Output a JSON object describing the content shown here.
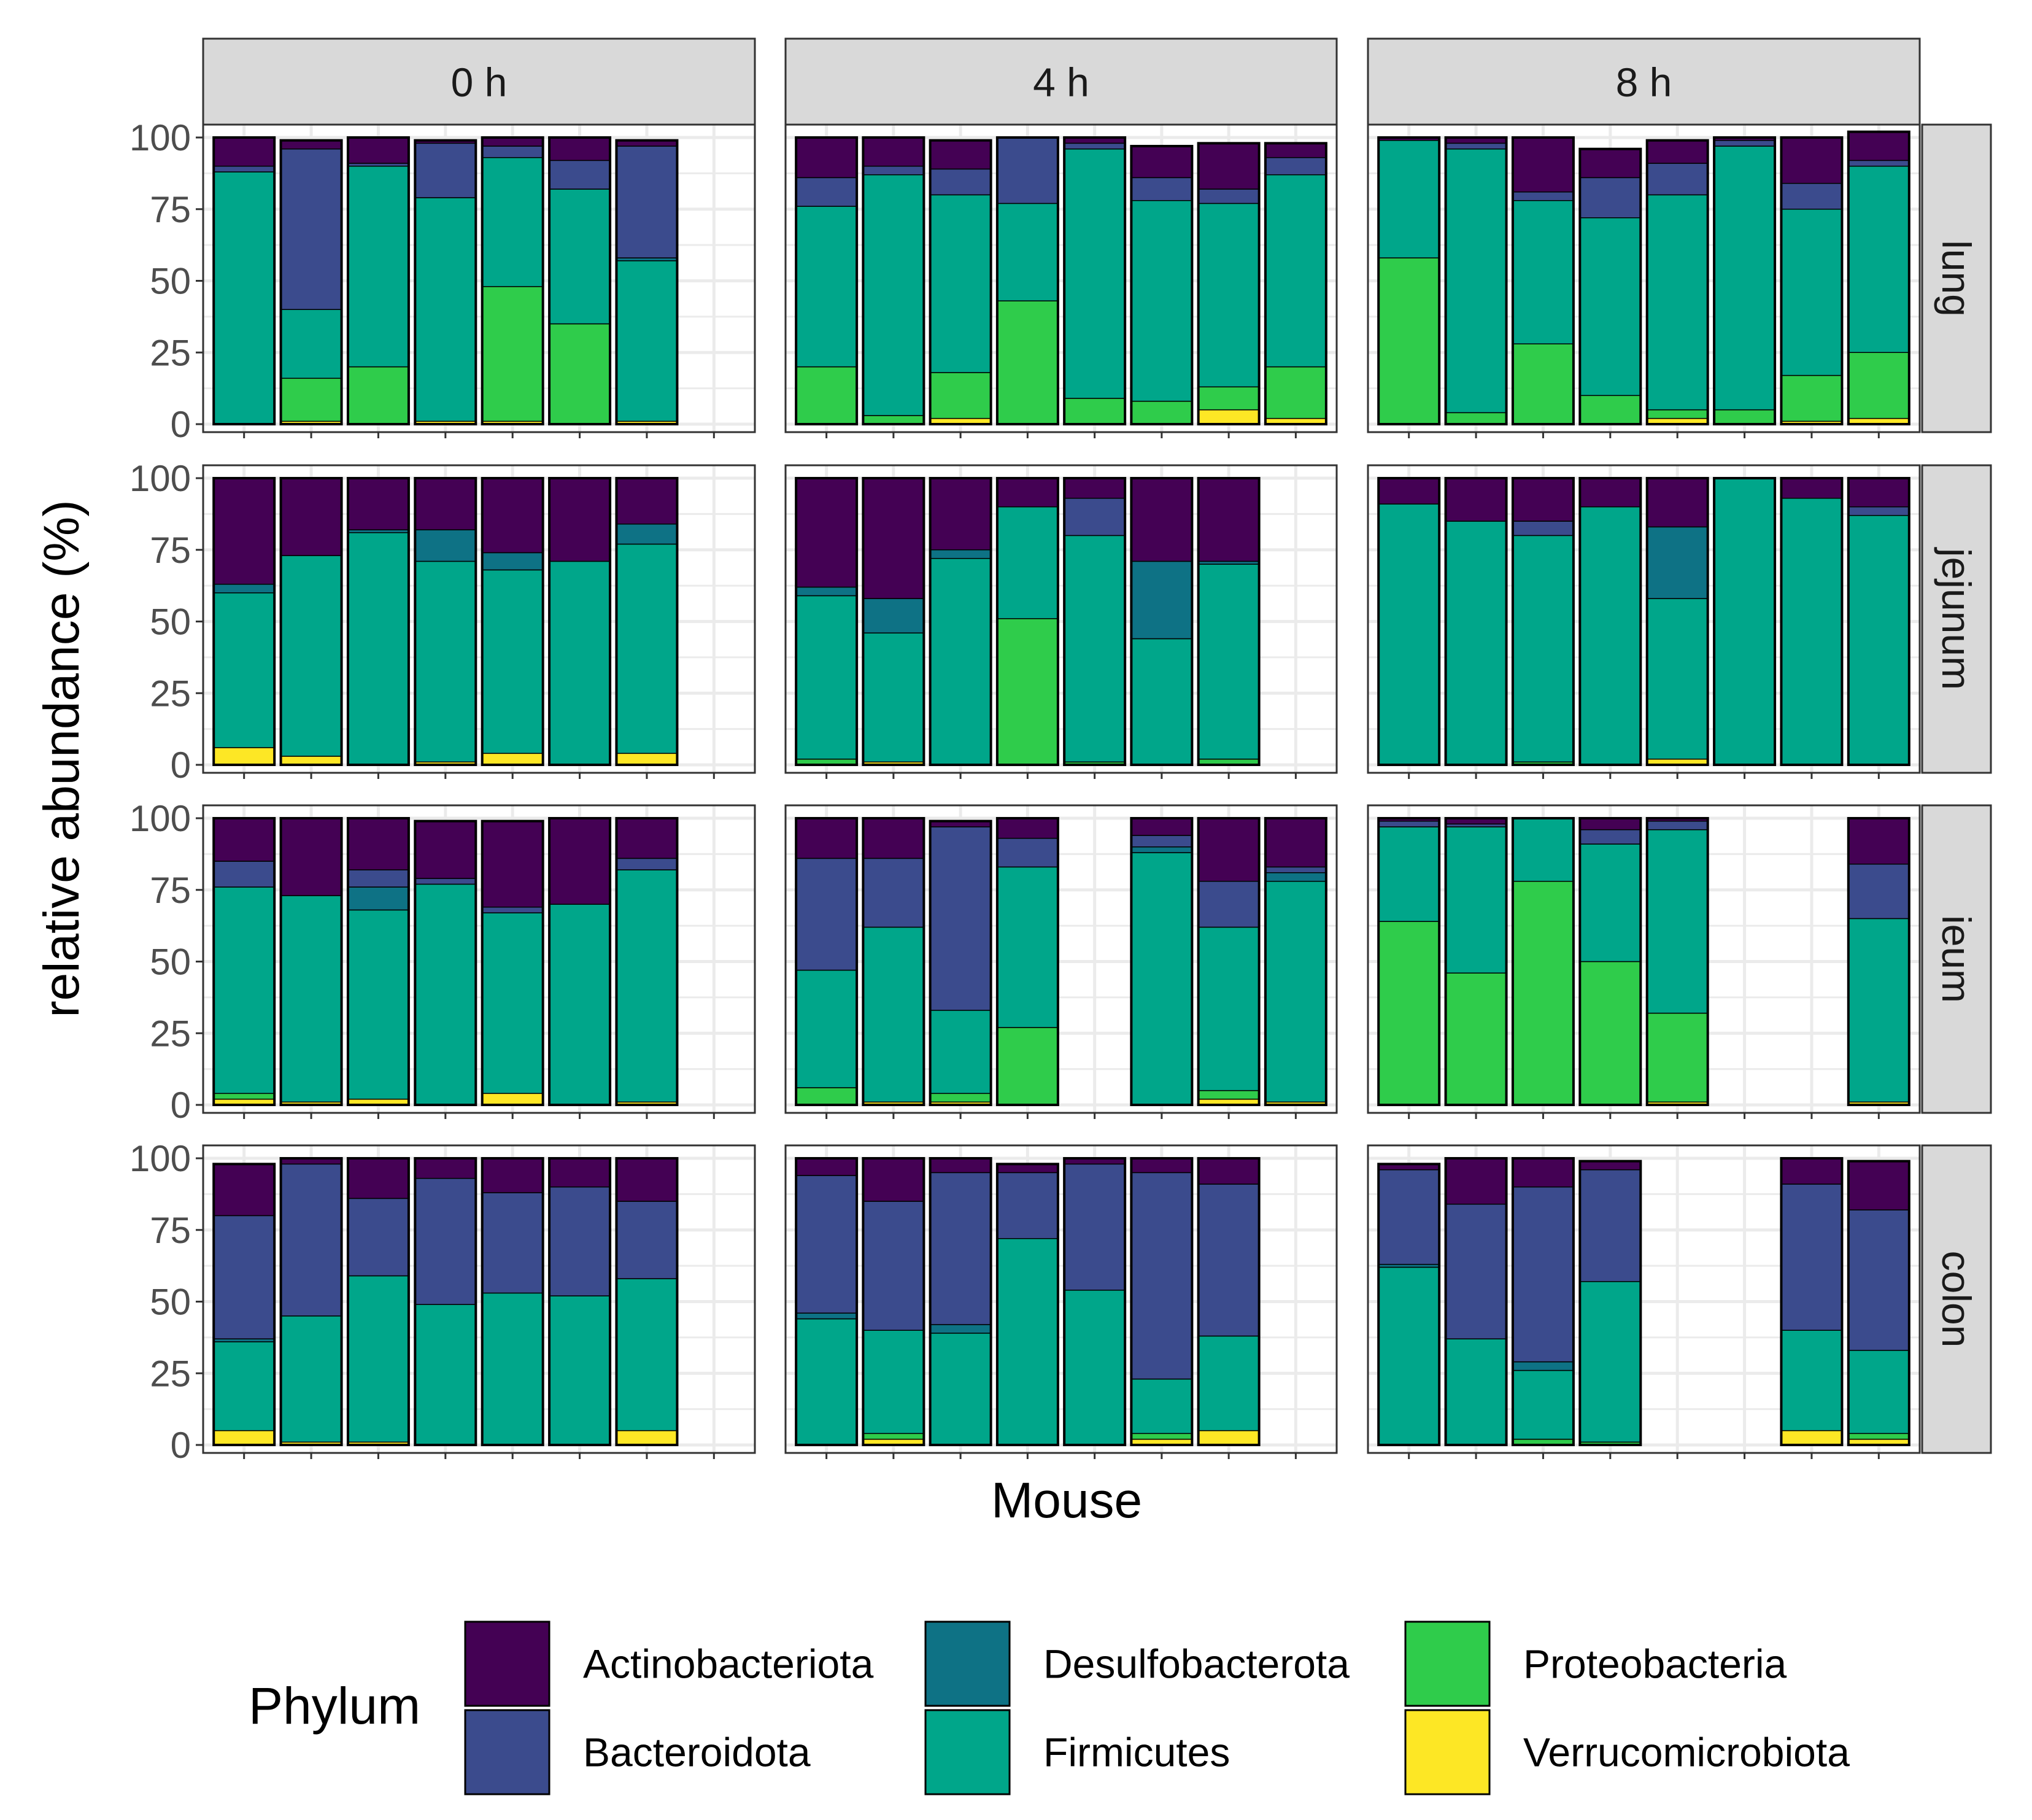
{
  "colors": {
    "Actinobacteriota": "#440154",
    "Bacteroidota": "#3B4B8D",
    "Desulfobacterota": "#0E7285",
    "Firmicutes": "#00A68A",
    "Proteobacteria": "#2FCC4B",
    "Verrucomicrobiota": "#FDE725",
    "strip": "#D9D9D9",
    "panel_border": "#333333",
    "grid": "#EBEBEB"
  },
  "chart_data": {
    "type": "bar",
    "stacked": true,
    "faceted": true,
    "xlabel": "Mouse",
    "ylabel": "relative abundance (%)",
    "ylim": [
      0,
      100
    ],
    "yticks": [
      "0",
      "25",
      "50",
      "75",
      "100"
    ],
    "legend": {
      "title": "Phylum",
      "position": "bottom",
      "entries": [
        "Actinobacteriota",
        "Bacteroidota",
        "Desulfobacterota",
        "Firmicutes",
        "Proteobacteria",
        "Verrucomicrobiota"
      ]
    },
    "facet_cols": [
      "0 h",
      "4 h",
      "8 h"
    ],
    "facet_rows": [
      "lung",
      "jejunum",
      "ieum",
      "colon"
    ],
    "stack_order": [
      "Verrucomicrobiota",
      "Proteobacteria",
      "Firmicutes",
      "Desulfobacterota",
      "Bacteroidota",
      "Actinobacteriota"
    ],
    "panels": [
      [
        {
          "bars": [
            [
              0,
              0,
              88,
              0,
              2,
              10
            ],
            [
              1,
              15,
              24,
              0,
              56,
              3
            ],
            [
              0,
              20,
              70,
              0,
              1,
              9
            ],
            [
              1,
              0,
              78,
              0,
              19,
              1
            ],
            [
              1,
              47,
              45,
              0,
              4,
              3
            ],
            [
              0,
              35,
              47,
              0,
              10,
              8
            ],
            [
              1,
              0,
              56,
              1,
              39,
              2
            ]
          ]
        },
        {
          "bars": [
            [
              6,
              0,
              54,
              3,
              0,
              37
            ],
            [
              3,
              0,
              70,
              0,
              0,
              27
            ],
            [
              0,
              0,
              81,
              1,
              0,
              18
            ],
            [
              1,
              0,
              70,
              11,
              0,
              18
            ],
            [
              4,
              0,
              64,
              6,
              0,
              26
            ],
            [
              0,
              0,
              71,
              0,
              0,
              29
            ],
            [
              4,
              0,
              73,
              7,
              0,
              16
            ]
          ]
        },
        {
          "bars": [
            [
              2,
              2,
              72,
              0,
              9,
              15
            ],
            [
              1,
              0,
              72,
              0,
              0,
              27
            ],
            [
              2,
              0,
              66,
              8,
              6,
              18
            ],
            [
              0,
              0,
              77,
              0,
              2,
              20
            ],
            [
              4,
              0,
              63,
              0,
              2,
              30
            ],
            [
              0,
              0,
              70,
              0,
              0,
              30
            ],
            [
              1,
              0,
              81,
              0,
              4,
              14
            ]
          ]
        },
        {
          "bars": [
            [
              5,
              0,
              31,
              1,
              43,
              18
            ],
            [
              1,
              0,
              44,
              0,
              53,
              2
            ],
            [
              1,
              0,
              58,
              0,
              27,
              14
            ],
            [
              0,
              0,
              49,
              0,
              44,
              7
            ],
            [
              0,
              0,
              53,
              0,
              35,
              12
            ],
            [
              0,
              0,
              52,
              0,
              38,
              10
            ],
            [
              5,
              0,
              53,
              0,
              27,
              15
            ]
          ]
        }
      ],
      [
        {
          "bars": [
            [
              0,
              20,
              56,
              0,
              10,
              14
            ],
            [
              0,
              3,
              84,
              0,
              3,
              10
            ],
            [
              2,
              16,
              62,
              0,
              9,
              10
            ],
            [
              0,
              43,
              34,
              0,
              23,
              0
            ],
            [
              0,
              9,
              87,
              0,
              2,
              2
            ],
            [
              0,
              8,
              70,
              0,
              8,
              11
            ],
            [
              5,
              8,
              64,
              0,
              5,
              16
            ],
            [
              2,
              18,
              67,
              0,
              6,
              5
            ]
          ]
        },
        {
          "bars": [
            [
              0,
              2,
              57,
              3,
              0,
              38
            ],
            [
              1,
              0,
              45,
              12,
              0,
              42
            ],
            [
              0,
              0,
              72,
              3,
              0,
              25
            ],
            [
              0,
              51,
              39,
              0,
              0,
              10
            ],
            [
              0,
              1,
              79,
              0,
              13,
              7
            ],
            [
              0,
              0,
              44,
              27,
              0,
              29
            ],
            [
              0,
              2,
              68,
              1,
              0,
              29
            ]
          ]
        },
        {
          "bars": [
            [
              0,
              6,
              41,
              0,
              39,
              14
            ],
            [
              1,
              0,
              61,
              0,
              24,
              14
            ],
            [
              1,
              3,
              29,
              0,
              64,
              2
            ],
            [
              0,
              27,
              56,
              0,
              10,
              7
            ],
            null,
            [
              0,
              0,
              88,
              2,
              4,
              6
            ],
            [
              2,
              3,
              57,
              0,
              16,
              22
            ],
            [
              1,
              0,
              77,
              3,
              2,
              17
            ]
          ]
        },
        {
          "bars": [
            [
              0,
              0,
              44,
              2,
              48,
              6
            ],
            [
              2,
              2,
              36,
              0,
              45,
              15
            ],
            [
              0,
              0,
              39,
              3,
              53,
              5
            ],
            [
              0,
              0,
              72,
              0,
              23,
              3
            ],
            [
              0,
              0,
              54,
              0,
              44,
              2
            ],
            [
              2,
              2,
              19,
              0,
              72,
              5
            ],
            [
              5,
              0,
              33,
              0,
              53,
              9
            ]
          ]
        }
      ],
      [
        {
          "bars": [
            [
              0,
              58,
              41,
              0,
              0,
              1
            ],
            [
              0,
              4,
              92,
              0,
              2,
              2
            ],
            [
              0,
              28,
              50,
              0,
              3,
              19
            ],
            [
              0,
              10,
              62,
              0,
              14,
              10
            ],
            [
              2,
              3,
              75,
              0,
              11,
              8
            ],
            [
              0,
              5,
              92,
              0,
              2,
              1
            ],
            [
              1,
              16,
              58,
              0,
              9,
              16
            ],
            [
              2,
              23,
              65,
              0,
              2,
              10
            ]
          ]
        },
        {
          "bars": [
            [
              0,
              0,
              91,
              0,
              0,
              9
            ],
            [
              0,
              0,
              85,
              0,
              0,
              15
            ],
            [
              0,
              1,
              79,
              0,
              5,
              15
            ],
            [
              0,
              0,
              90,
              0,
              0,
              10
            ],
            [
              2,
              0,
              56,
              25,
              0,
              17
            ],
            [
              0,
              0,
              100,
              0,
              0,
              0
            ],
            [
              0,
              0,
              93,
              0,
              0,
              7
            ],
            [
              0,
              0,
              87,
              0,
              3,
              10
            ]
          ]
        },
        {
          "bars": [
            [
              0,
              64,
              33,
              0,
              2,
              1
            ],
            [
              0,
              46,
              51,
              0,
              1,
              2
            ],
            [
              0,
              78,
              22,
              0,
              0,
              0
            ],
            [
              0,
              50,
              41,
              0,
              5,
              4
            ],
            [
              1,
              31,
              64,
              0,
              3,
              1
            ],
            null,
            null,
            [
              1,
              0,
              64,
              0,
              19,
              16
            ]
          ]
        },
        {
          "bars": [
            [
              0,
              0,
              62,
              1,
              33,
              2
            ],
            [
              0,
              0,
              37,
              0,
              47,
              16
            ],
            [
              0,
              2,
              24,
              3,
              61,
              10
            ],
            [
              0,
              1,
              56,
              0,
              39,
              3
            ],
            null,
            null,
            [
              5,
              0,
              35,
              0,
              51,
              9
            ],
            [
              2,
              2,
              29,
              0,
              49,
              17
            ]
          ]
        }
      ]
    ]
  }
}
